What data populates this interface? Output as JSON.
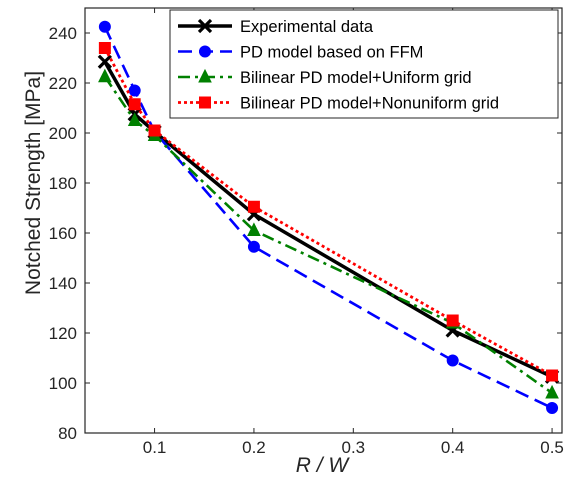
{
  "chart_data": {
    "type": "line",
    "xlabel": "R / W",
    "ylabel": "Notched Strength [MPa]",
    "xlim": [
      0.03,
      0.51
    ],
    "ylim": [
      80,
      250
    ],
    "xticks": [
      0.1,
      0.2,
      0.3,
      0.4,
      0.5
    ],
    "xtick_labels": [
      "0.1",
      "0.2",
      "0.3",
      "0.4",
      "0.5"
    ],
    "yticks": [
      80,
      100,
      120,
      140,
      160,
      180,
      200,
      220,
      240
    ],
    "ytick_labels": [
      "80",
      "100",
      "120",
      "140",
      "160",
      "180",
      "200",
      "220",
      "240"
    ],
    "grid": false,
    "legend_position": "top-right",
    "series": [
      {
        "name": "Experimental data",
        "color": "#000000",
        "line_style": "solid",
        "marker": "x",
        "x": [
          0.05,
          0.08,
          0.1,
          0.2,
          0.4,
          0.5
        ],
        "y": [
          228.5,
          207.5,
          200.5,
          167.5,
          121,
          102.5
        ]
      },
      {
        "name": "PD model based on FFM",
        "color": "#0000ff",
        "line_style": "dashed",
        "marker": "circle",
        "x": [
          0.05,
          0.08,
          0.1,
          0.2,
          0.4,
          0.5
        ],
        "y": [
          242.5,
          217,
          200.5,
          154.5,
          109,
          90
        ]
      },
      {
        "name": "Bilinear PD model+Uniform grid",
        "color": "#008000",
        "line_style": "dashdot",
        "marker": "triangle",
        "x": [
          0.05,
          0.08,
          0.1,
          0.2,
          0.4,
          0.5
        ],
        "y": [
          222.5,
          205,
          199,
          161,
          124,
          96
        ]
      },
      {
        "name": "Bilinear PD model+Nonuniform grid",
        "color": "#ff0000",
        "line_style": "dotted",
        "marker": "square",
        "x": [
          0.05,
          0.08,
          0.1,
          0.2,
          0.4,
          0.5
        ],
        "y": [
          234,
          211.5,
          201,
          170.5,
          125,
          103
        ]
      }
    ]
  }
}
